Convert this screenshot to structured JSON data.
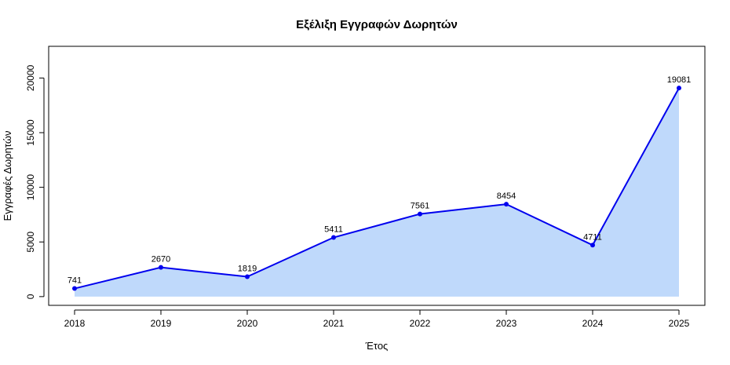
{
  "chart_data": {
    "type": "area",
    "title": "Εξέλιξη Εγγραφών Δωρητών",
    "xlabel": "Έτος",
    "ylabel": "Εγγραφές Δωρητών",
    "x": [
      2018,
      2019,
      2020,
      2021,
      2022,
      2023,
      2024,
      2025
    ],
    "x_tick_labels": [
      "2018",
      "2019",
      "2020",
      "2021",
      "2022",
      "2023",
      "2024",
      "2025"
    ],
    "y_ticks": [
      0,
      5000,
      10000,
      15000,
      20000
    ],
    "y_tick_labels": [
      "0",
      "5000",
      "10000",
      "15000",
      "20000"
    ],
    "values": [
      741,
      2670,
      1819,
      5411,
      7561,
      8454,
      4711,
      19081
    ],
    "data_labels": [
      "741",
      "2670",
      "1819",
      "5411",
      "7561",
      "8454",
      "4711",
      "19081"
    ],
    "ylim": [
      -800,
      22900
    ],
    "xlim": [
      2017.7,
      2025.3
    ],
    "grid": false,
    "colors": {
      "line": "#0000ee",
      "fill": "#bfd9fb",
      "axis": "#000000"
    }
  }
}
